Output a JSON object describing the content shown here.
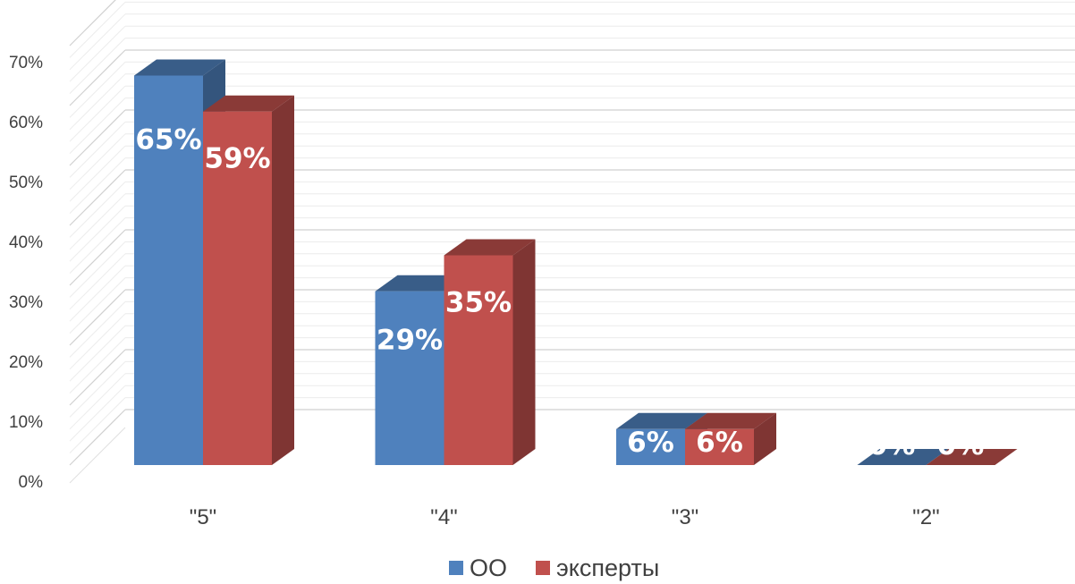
{
  "chart_data": {
    "type": "bar",
    "style": "3d-clustered-column",
    "categories": [
      "\"5\"",
      "\"4\"",
      "\"3\"",
      "\"2\""
    ],
    "series": [
      {
        "name": "ОО",
        "values": [
          65,
          29,
          6,
          0
        ],
        "labels": [
          "65%",
          "29%",
          "6%",
          "0%"
        ],
        "color": "#4F81BD"
      },
      {
        "name": "эксперты",
        "values": [
          59,
          35,
          6,
          0
        ],
        "labels": [
          "59%",
          "35%",
          "6%",
          "0%"
        ],
        "color": "#C0504D"
      }
    ],
    "y_ticks": [
      "0%",
      "10%",
      "20%",
      "30%",
      "40%",
      "50%",
      "60%",
      "70%"
    ],
    "ylim": [
      0,
      70
    ],
    "grid": true,
    "legend_position": "bottom",
    "data_label_color": "#FFFFFF"
  }
}
